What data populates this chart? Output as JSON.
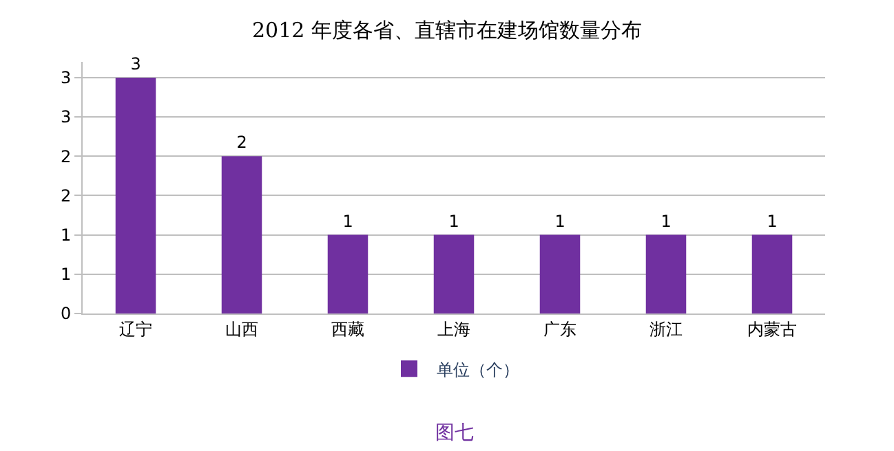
{
  "chart_data": {
    "type": "bar",
    "title": "2012 年度各省、直辖市在建场馆数量分布",
    "categories": [
      "辽宁",
      "山西",
      "西藏",
      "上海",
      "广东",
      "浙江",
      "内蒙古"
    ],
    "series": [
      {
        "name": "单位（个）",
        "color": "#7030a0",
        "values": [
          3,
          2,
          1,
          1,
          1,
          1,
          1
        ]
      }
    ],
    "ylim": [
      0,
      3.2
    ],
    "yticks": [
      0,
      {
        "value": 0.5,
        "label": "1"
      },
      1,
      {
        "value": 1.5,
        "label": "2"
      },
      2,
      {
        "value": 2.5,
        "label": "3"
      },
      3
    ],
    "grid": "y",
    "legend": "bottom",
    "data_labels": true,
    "annotations": [
      "图七"
    ]
  }
}
